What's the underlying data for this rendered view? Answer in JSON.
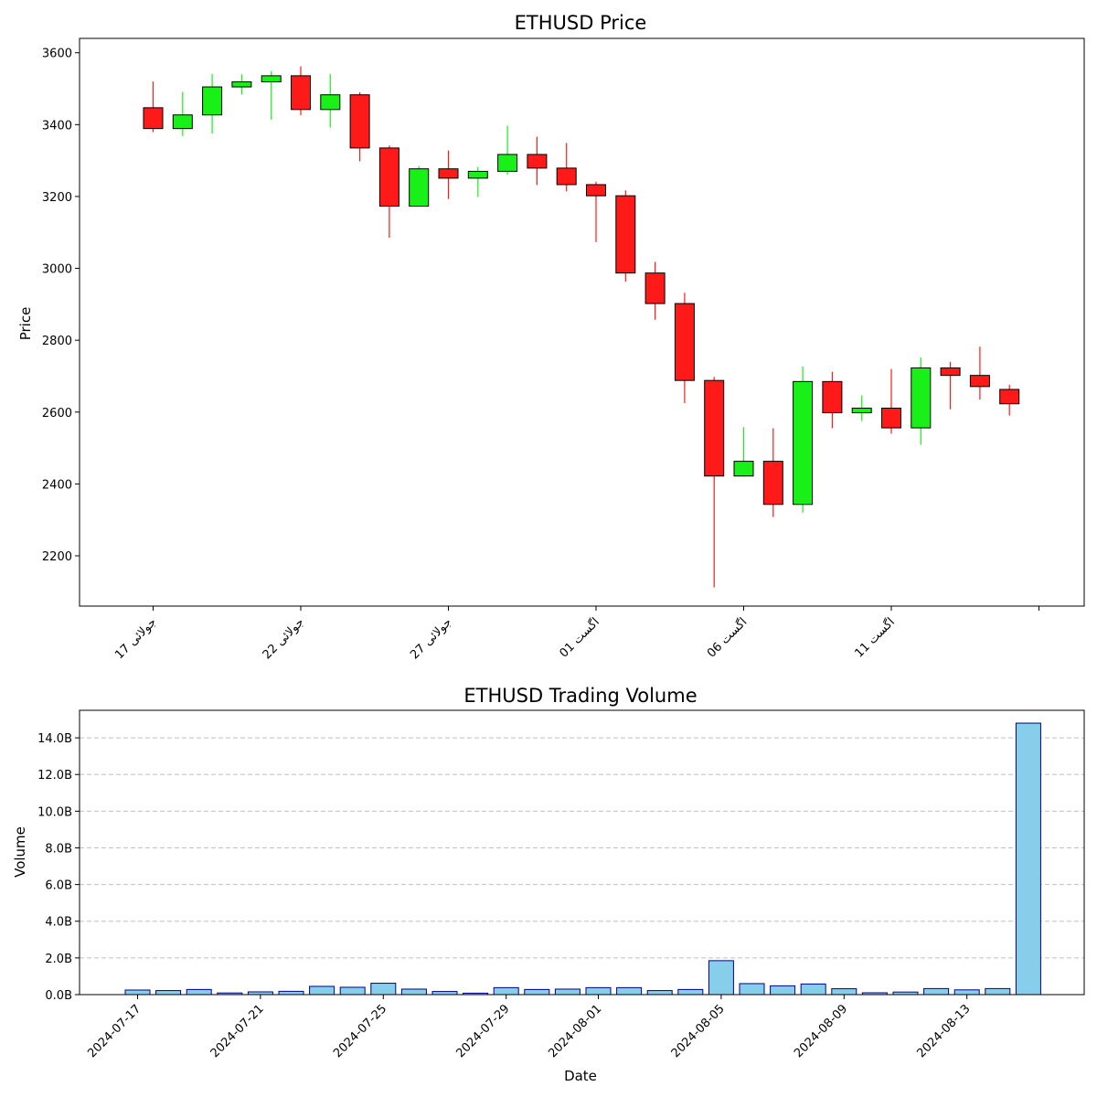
{
  "chart_data": [
    {
      "type": "candlestick",
      "title": "ETHUSD Price",
      "xlabel": "",
      "ylabel": "Price",
      "ylim": [
        2060,
        3640
      ],
      "yticks": [
        2200,
        2400,
        2600,
        2800,
        3000,
        3200,
        3400,
        3600
      ],
      "x_tick_labels": [
        "جولائی 17",
        "جولائی 22",
        "جولائی 27",
        "اگست 01",
        "اگست 06",
        "اگست 11",
        ""
      ],
      "up_color": "#18f018",
      "down_color": "#ff1a1a",
      "dates": [
        "2024-07-17",
        "2024-07-18",
        "2024-07-19",
        "2024-07-20",
        "2024-07-21",
        "2024-07-22",
        "2024-07-23",
        "2024-07-24",
        "2024-07-25",
        "2024-07-26",
        "2024-07-27",
        "2024-07-28",
        "2024-07-29",
        "2024-07-30",
        "2024-07-31",
        "2024-08-01",
        "2024-08-02",
        "2024-08-03",
        "2024-08-04",
        "2024-08-05",
        "2024-08-06",
        "2024-08-07",
        "2024-08-08",
        "2024-08-09",
        "2024-08-10",
        "2024-08-11",
        "2024-08-12",
        "2024-08-13",
        "2024-08-14",
        "2024-08-15"
      ],
      "open": [
        3447,
        3389,
        3427,
        3505,
        3519,
        3536,
        3442,
        3483,
        3335,
        3173,
        3277,
        3251,
        3270,
        3317,
        3279,
        3233,
        3202,
        2987,
        2902,
        2688,
        2422,
        2463,
        2343,
        2685,
        2598,
        2611,
        2556,
        2723,
        2702,
        2663
      ],
      "high": [
        3520,
        3491,
        3541,
        3540,
        3549,
        3562,
        3541,
        3490,
        3342,
        3285,
        3328,
        3282,
        3397,
        3366,
        3349,
        3241,
        3217,
        3018,
        2932,
        2698,
        2558,
        2555,
        2727,
        2712,
        2646,
        2720,
        2752,
        2740,
        2782,
        2676
      ],
      "low": [
        3379,
        3368,
        3375,
        3484,
        3414,
        3426,
        3392,
        3298,
        3085,
        3172,
        3193,
        3199,
        3261,
        3232,
        3214,
        3073,
        2963,
        2857,
        2625,
        2112,
        2420,
        2308,
        2320,
        2555,
        2575,
        2540,
        2509,
        2608,
        2635,
        2590
      ],
      "close": [
        3389,
        3427,
        3505,
        3519,
        3536,
        3442,
        3483,
        3335,
        3173,
        3277,
        3251,
        3270,
        3317,
        3279,
        3233,
        3202,
        2987,
        2902,
        2688,
        2422,
        2463,
        2343,
        2685,
        2598,
        2611,
        2556,
        2723,
        2702,
        2671,
        2623
      ]
    },
    {
      "type": "bar",
      "title": "ETHUSD Trading Volume",
      "xlabel": "Date",
      "ylabel": "Volume",
      "ylim": [
        0,
        15.5
      ],
      "unit": "B",
      "yticks": [
        0,
        2,
        4,
        6,
        8,
        10,
        12,
        14
      ],
      "ytick_labels": [
        "0.0B",
        "2.0B",
        "4.0B",
        "6.0B",
        "8.0B",
        "10.0B",
        "12.0B",
        "14.0B"
      ],
      "x_tick_labels": [
        "2024-07-17",
        "2024-07-21",
        "2024-07-25",
        "2024-07-29",
        "2024-08-01",
        "2024-08-05",
        "2024-08-09",
        "2024-08-13"
      ],
      "x_tick_days": [
        0,
        4,
        8,
        12,
        15,
        19,
        23,
        27
      ],
      "grid": "y-dashed",
      "bar_color": "#87ceeb",
      "edge_color": "#00008b",
      "values": [
        0.25,
        0.22,
        0.28,
        0.09,
        0.15,
        0.18,
        0.45,
        0.4,
        0.62,
        0.3,
        0.17,
        0.08,
        0.38,
        0.28,
        0.3,
        0.38,
        0.38,
        0.22,
        0.28,
        1.85,
        0.6,
        0.48,
        0.58,
        0.32,
        0.1,
        0.14,
        0.33,
        0.26,
        0.33,
        14.8
      ]
    }
  ]
}
